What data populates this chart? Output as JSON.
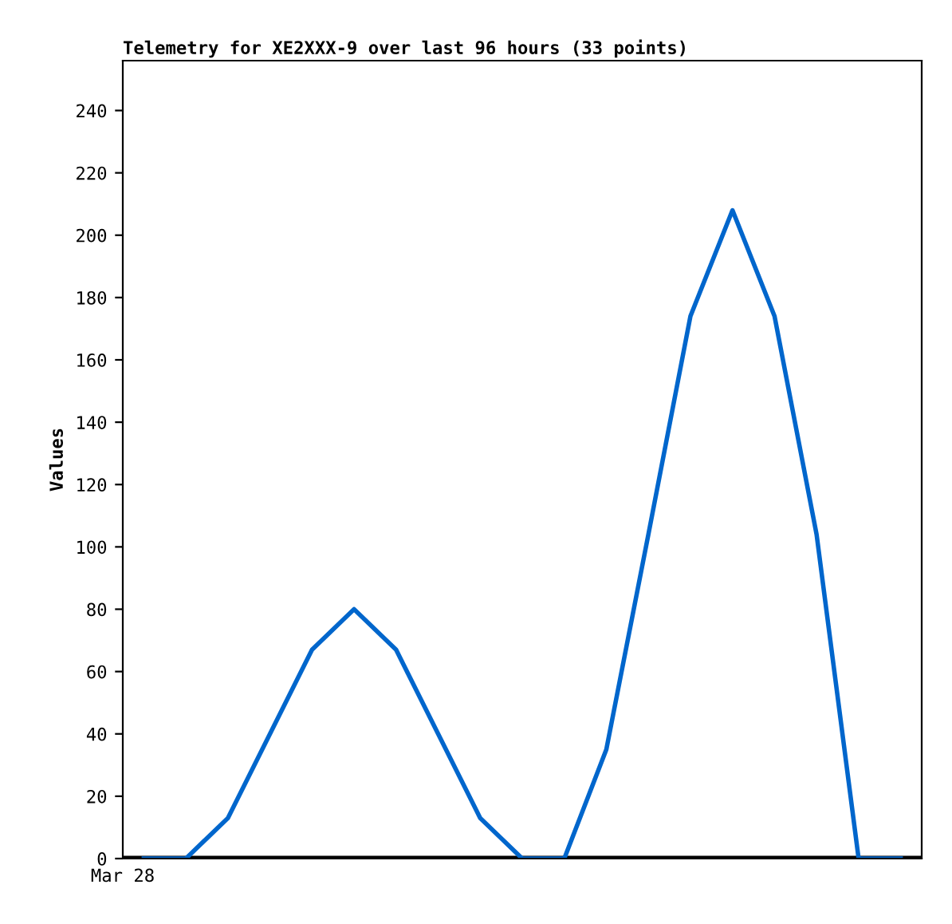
{
  "chart_data": {
    "type": "line",
    "title": "Telemetry for XE2XXX-9 over last 96 hours (33 points)",
    "ylabel": "Values",
    "annotations": [
      "Mar 28"
    ],
    "categories": [
      null,
      null,
      null,
      null,
      null,
      null,
      null,
      null,
      null,
      null,
      null,
      null,
      null,
      null,
      null,
      null,
      null,
      null,
      null
    ],
    "ylim": [
      0,
      256
    ],
    "yticks": [
      0,
      20,
      40,
      60,
      80,
      100,
      120,
      140,
      160,
      180,
      200,
      220,
      240
    ],
    "ref_lines": [
      {
        "axis": "y",
        "value": 0,
        "color": "#000000"
      }
    ],
    "series": [
      {
        "color": "#0066cc",
        "values": [
          0,
          0,
          13,
          40,
          67,
          80,
          67,
          40,
          13,
          0,
          0,
          35,
          104,
          174,
          208,
          174,
          104,
          0,
          0
        ]
      }
    ],
    "grid": false,
    "legend": false,
    "marker": "none",
    "line_style": "solid"
  }
}
